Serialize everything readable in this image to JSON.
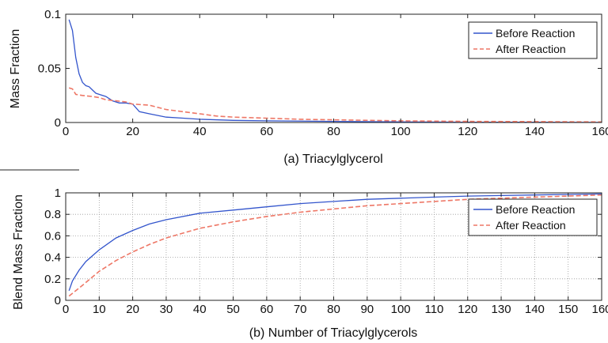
{
  "chart_data": [
    {
      "type": "line",
      "caption": "(a) Triacylglycerol",
      "xlabel": "",
      "ylabel": "Mass Fraction",
      "xlim": [
        0,
        160
      ],
      "ylim": [
        0,
        0.1
      ],
      "xticks": [
        0,
        20,
        40,
        60,
        80,
        100,
        120,
        140,
        160
      ],
      "xtick_labels": [
        "0",
        "20",
        "40",
        "60",
        "80",
        "100",
        "120",
        "140",
        "160"
      ],
      "yticks": [
        0,
        0.05,
        0.1
      ],
      "ytick_labels": [
        "0",
        "0.05",
        "0.1"
      ],
      "grid": false,
      "legend_position": "top-right",
      "series": [
        {
          "name": "Before Reaction",
          "color": "#3355cc",
          "style": "solid",
          "x": [
            1,
            2,
            3,
            4,
            5,
            6,
            7,
            8,
            9,
            10,
            12,
            14,
            16,
            18,
            20,
            22,
            25,
            30,
            35,
            40,
            50,
            60,
            80,
            100,
            120,
            140,
            160
          ],
          "y": [
            0.095,
            0.085,
            0.06,
            0.045,
            0.037,
            0.034,
            0.033,
            0.03,
            0.027,
            0.026,
            0.024,
            0.02,
            0.018,
            0.018,
            0.017,
            0.01,
            0.008,
            0.005,
            0.004,
            0.003,
            0.002,
            0.0015,
            0.001,
            0.0005,
            0.0003,
            0.0002,
            0.0001
          ]
        },
        {
          "name": "After Reaction",
          "color": "#ee7766",
          "style": "dashed",
          "x": [
            1,
            2,
            3,
            5,
            8,
            10,
            12,
            15,
            18,
            20,
            25,
            30,
            35,
            40,
            45,
            50,
            60,
            70,
            80,
            100,
            120,
            140,
            160
          ],
          "y": [
            0.032,
            0.031,
            0.026,
            0.025,
            0.024,
            0.023,
            0.021,
            0.02,
            0.019,
            0.017,
            0.016,
            0.012,
            0.01,
            0.008,
            0.006,
            0.005,
            0.004,
            0.003,
            0.0025,
            0.0015,
            0.001,
            0.0008,
            0.0005
          ]
        }
      ]
    },
    {
      "type": "line",
      "caption": "(b) Number of Triacylglycerols",
      "xlabel": "",
      "ylabel": "Blend Mass Fraction",
      "xlim": [
        0,
        160
      ],
      "ylim": [
        0,
        1
      ],
      "xticks": [
        0,
        10,
        20,
        30,
        40,
        50,
        60,
        70,
        80,
        90,
        100,
        110,
        120,
        130,
        140,
        150,
        160
      ],
      "xtick_labels": [
        "0",
        "10",
        "20",
        "30",
        "40",
        "50",
        "60",
        "70",
        "80",
        "90",
        "100",
        "110",
        "120",
        "130",
        "140",
        "150",
        "160"
      ],
      "yticks": [
        0,
        0.2,
        0.4,
        0.6,
        0.8,
        1
      ],
      "ytick_labels": [
        "0",
        "0.2",
        "0.4",
        "0.6",
        "0.8",
        "1"
      ],
      "grid": true,
      "legend_position": "top-right",
      "series": [
        {
          "name": "Before Reaction",
          "color": "#3355cc",
          "style": "solid",
          "x": [
            1,
            2,
            4,
            6,
            10,
            15,
            20,
            25,
            30,
            40,
            50,
            60,
            70,
            80,
            90,
            100,
            110,
            120,
            130,
            140,
            150,
            160
          ],
          "y": [
            0.09,
            0.18,
            0.28,
            0.36,
            0.47,
            0.58,
            0.65,
            0.71,
            0.75,
            0.81,
            0.84,
            0.87,
            0.9,
            0.92,
            0.94,
            0.95,
            0.96,
            0.97,
            0.975,
            0.98,
            0.985,
            0.99
          ]
        },
        {
          "name": "After Reaction",
          "color": "#ee7766",
          "style": "dashed",
          "x": [
            1,
            5,
            10,
            15,
            20,
            25,
            30,
            40,
            50,
            60,
            70,
            80,
            90,
            100,
            110,
            120,
            130,
            140,
            150,
            160
          ],
          "y": [
            0.04,
            0.14,
            0.27,
            0.37,
            0.45,
            0.52,
            0.58,
            0.67,
            0.73,
            0.78,
            0.82,
            0.85,
            0.88,
            0.9,
            0.92,
            0.94,
            0.95,
            0.96,
            0.97,
            0.98
          ]
        }
      ]
    }
  ]
}
